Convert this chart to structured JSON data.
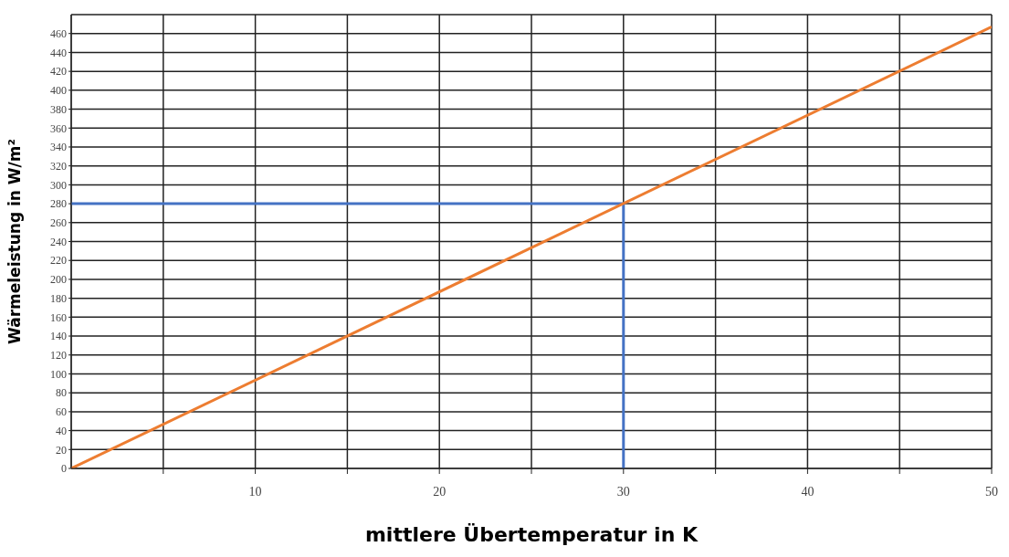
{
  "chart_data": {
    "type": "line",
    "xlabel": "mittlere Übertemperatur in K",
    "ylabel": "Wärmeleistung in W/m²",
    "series": [
      {
        "color": "#4472c4",
        "x": [
          0,
          30,
          30
        ],
        "values": [
          280,
          280,
          0
        ]
      },
      {
        "color": "#ed7d31",
        "x": [
          0,
          50
        ],
        "values": [
          0,
          467
        ]
      }
    ],
    "xlim": [
      0,
      50
    ],
    "xticks": [
      {
        "value": 5,
        "label": null
      },
      10,
      {
        "value": 15,
        "label": null
      },
      20,
      {
        "value": 25,
        "label": null
      },
      30,
      {
        "value": 35,
        "label": null
      },
      40,
      {
        "value": 45,
        "label": null
      },
      50
    ],
    "ylim": [
      0,
      480
    ],
    "yticks": [
      0,
      20,
      40,
      60,
      80,
      100,
      120,
      140,
      160,
      180,
      200,
      220,
      240,
      260,
      280,
      300,
      320,
      340,
      360,
      380,
      400,
      420,
      440,
      460
    ],
    "grid": true,
    "marker": "none",
    "line_style": "solid"
  }
}
